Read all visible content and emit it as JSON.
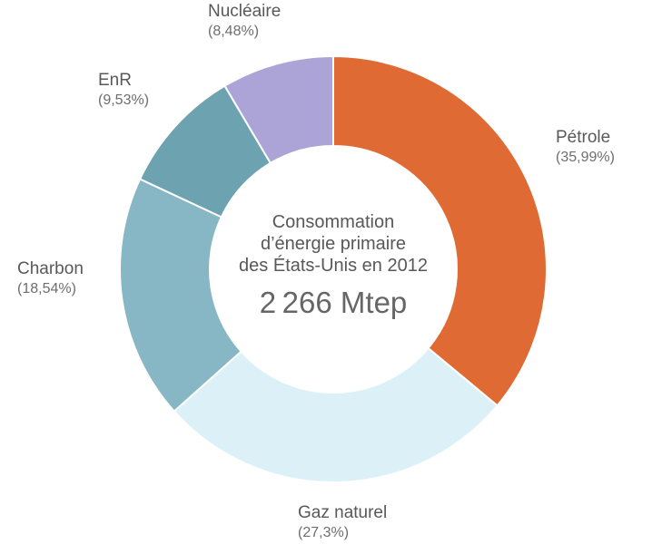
{
  "chart_data": {
    "type": "pie",
    "subtype": "donut",
    "title": "Consommation d’énergie primaire des États-Unis en 2012",
    "center_lines": [
      "Consommation",
      "d’énergie primaire",
      "des États-Unis en 2012"
    ],
    "total_label": "2 266 Mtep",
    "unit": "Mtep",
    "start_angle_deg": 0,
    "direction": "clockwise",
    "inner_radius_ratio": 0.58,
    "legend_position": "outside-labels",
    "background": "#ffffff",
    "separator_color": "#ffffff",
    "slices": [
      {
        "id": "petrole",
        "label": "Pétrole",
        "value": 35.99,
        "pct_label": "(35,99%)",
        "color": "#e06a33"
      },
      {
        "id": "gaz-naturel",
        "label": "Gaz naturel",
        "value": 27.3,
        "pct_label": "(27,3%)",
        "color": "#dcf1f7"
      },
      {
        "id": "charbon",
        "label": "Charbon",
        "value": 18.54,
        "pct_label": "(18,54%)",
        "color": "#87b7c4"
      },
      {
        "id": "enr",
        "label": "EnR",
        "value": 9.53,
        "pct_label": "(9,53%)",
        "color": "#6da2b0"
      },
      {
        "id": "nucleaire",
        "label": "Nucléaire",
        "value": 8.48,
        "pct_label": "(8,48%)",
        "color": "#aca4d7"
      }
    ]
  }
}
